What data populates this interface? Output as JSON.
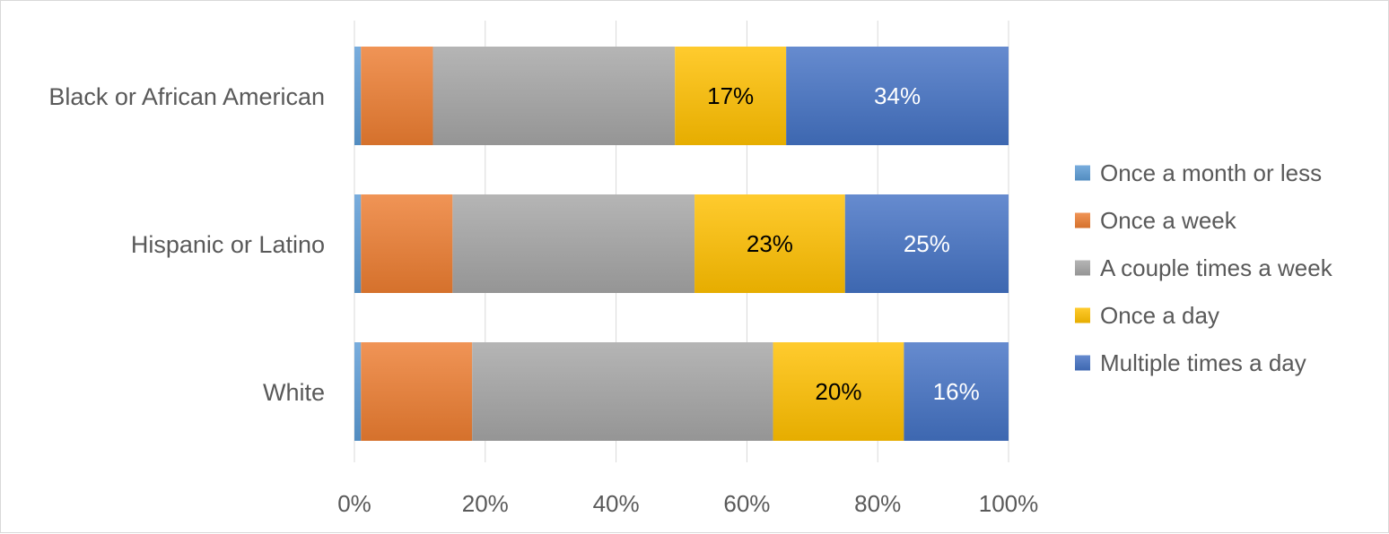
{
  "chart_data": {
    "type": "bar",
    "orientation": "horizontal",
    "stacked": "percent",
    "title": "",
    "xlabel": "",
    "ylabel": "",
    "xlim": [
      0,
      100
    ],
    "x_ticks": [
      "0%",
      "20%",
      "40%",
      "60%",
      "80%",
      "100%"
    ],
    "grid": "vertical",
    "legend_position": "right",
    "categories": [
      "Black or African American",
      "Hispanic or Latino",
      "White"
    ],
    "series": [
      {
        "name": "Once a month or less",
        "color": "#5B9BD5",
        "values": [
          1,
          1,
          1
        ],
        "labels": [
          "",
          "",
          ""
        ]
      },
      {
        "name": "Once a week",
        "color": "#ED7D31",
        "values": [
          11,
          14,
          17
        ],
        "labels": [
          "",
          "",
          ""
        ]
      },
      {
        "name": "A couple times a week",
        "color": "#A5A5A5",
        "values": [
          37,
          37,
          46
        ],
        "labels": [
          "",
          "",
          ""
        ]
      },
      {
        "name": "Once a day",
        "color": "#FFC000",
        "values": [
          17,
          23,
          20
        ],
        "labels": [
          "17%",
          "23%",
          "20%"
        ],
        "label_color": "#000000"
      },
      {
        "name": "Multiple times a day",
        "color": "#4472C4",
        "values": [
          34,
          25,
          16
        ],
        "labels": [
          "34%",
          "25%",
          "16%"
        ],
        "label_color": "#ffffff"
      }
    ]
  }
}
